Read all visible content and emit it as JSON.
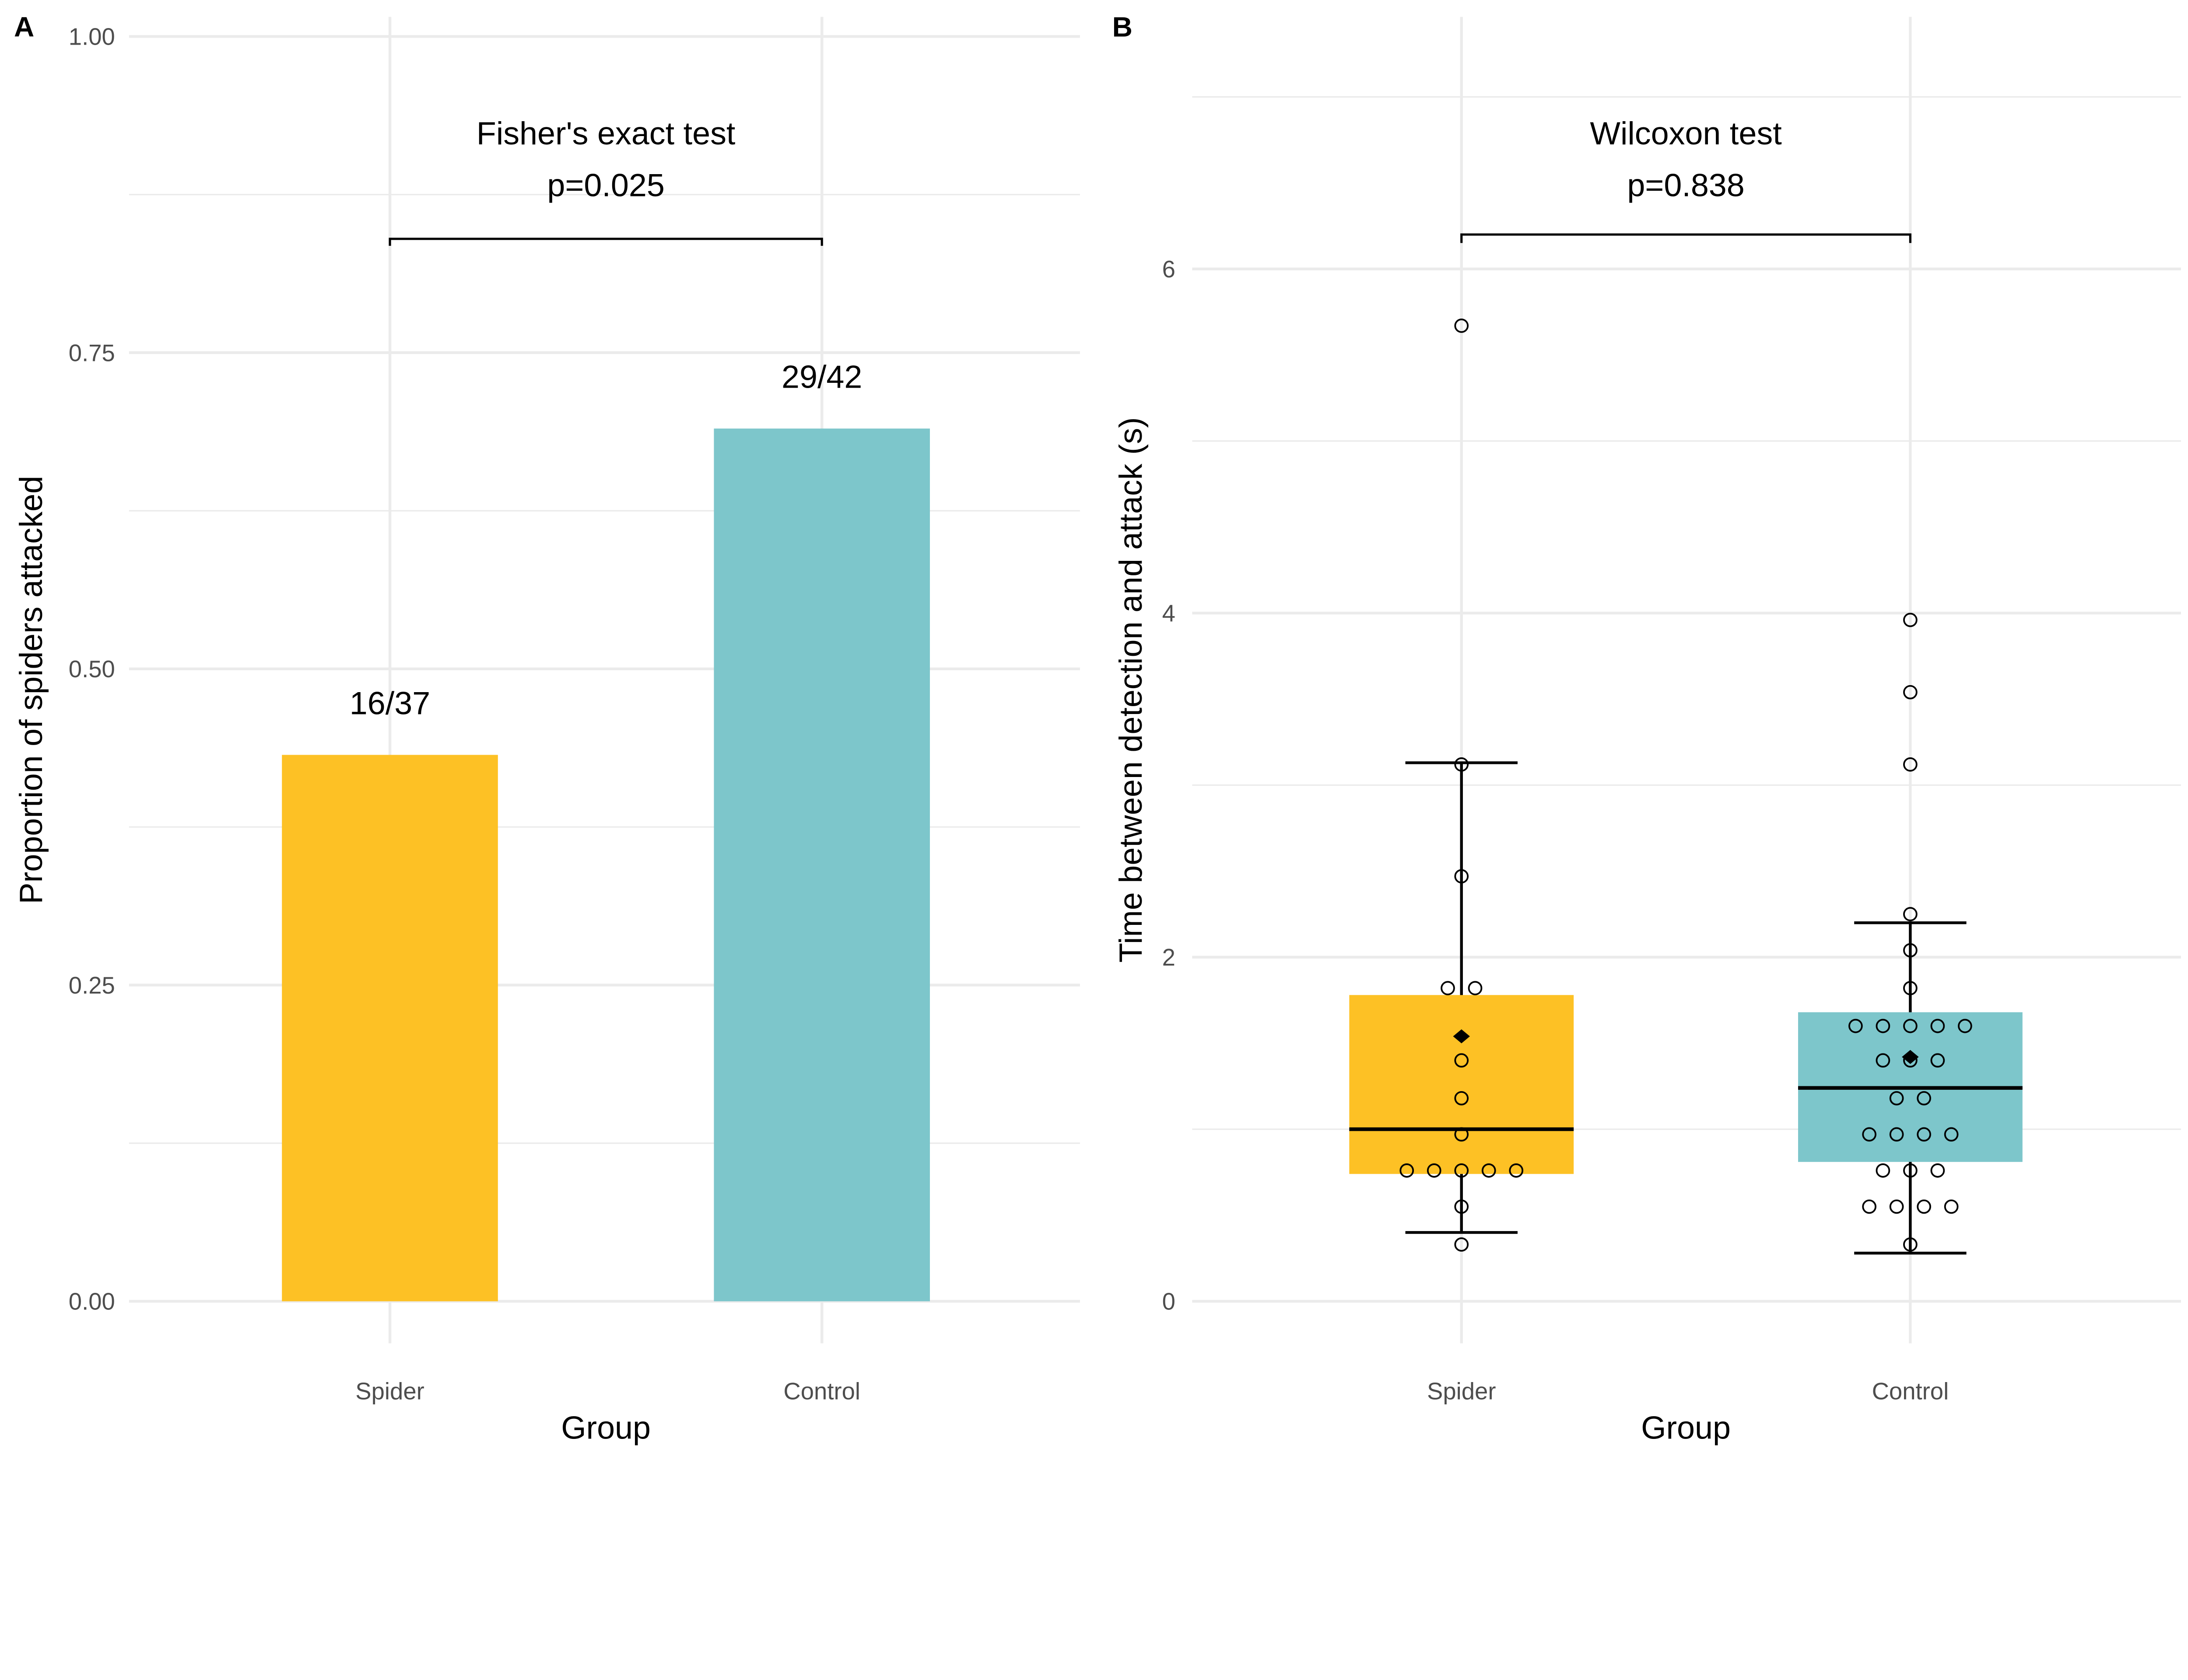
{
  "chart_data": [
    {
      "panel_label": "A",
      "type": "bar",
      "categories": [
        "Spider",
        "Control"
      ],
      "values": [
        0.432,
        0.69
      ],
      "data_labels": [
        "16/37",
        "29/42"
      ],
      "xlabel": "Group",
      "ylabel": "Proportion of spiders attacked",
      "ylim": [
        0,
        1
      ],
      "yticks": [
        "0.00",
        "0.25",
        "0.50",
        "0.75",
        "1.00"
      ],
      "grid": true,
      "colors": [
        "#FDC125",
        "#7DC6CB"
      ],
      "annotation": {
        "test": "Fisher's exact test",
        "p": "p=0.025",
        "bracket_y": 0.84
      }
    },
    {
      "panel_label": "B",
      "type": "box",
      "categories": [
        "Spider",
        "Control"
      ],
      "xlabel": "Group",
      "ylabel": "Time between detection and attack (s)",
      "ylim": [
        0,
        7.5
      ],
      "yticks": [
        "0",
        "2",
        "4",
        "6"
      ],
      "grid": true,
      "colors": [
        "#FDC125",
        "#7DC6CB"
      ],
      "boxes": [
        {
          "q1": 0.74,
          "median": 1.0,
          "q3": 1.78,
          "whisker_low": 0.4,
          "whisker_high": 3.13,
          "mean": 1.54
        },
        {
          "q1": 0.81,
          "median": 1.24,
          "q3": 1.68,
          "whisker_low": 0.28,
          "whisker_high": 2.2,
          "mean": 1.42
        }
      ],
      "points": [
        [
          5.67,
          3.12,
          2.47,
          1.82,
          1.82,
          1.4,
          1.18,
          0.97,
          0.76,
          0.76,
          0.76,
          0.76,
          0.76,
          0.55,
          0.33
        ],
        [
          3.96,
          3.54,
          3.12,
          2.25,
          2.04,
          1.82,
          1.6,
          1.6,
          1.6,
          1.6,
          1.6,
          1.4,
          1.4,
          1.4,
          1.18,
          1.18,
          0.97,
          0.97,
          0.97,
          0.97,
          0.76,
          0.76,
          0.76,
          0.55,
          0.55,
          0.55,
          0.55,
          0.33
        ]
      ],
      "annotation": {
        "test": "Wilcoxon test",
        "p": "p=0.838",
        "bracket_y": 6.2
      }
    }
  ]
}
